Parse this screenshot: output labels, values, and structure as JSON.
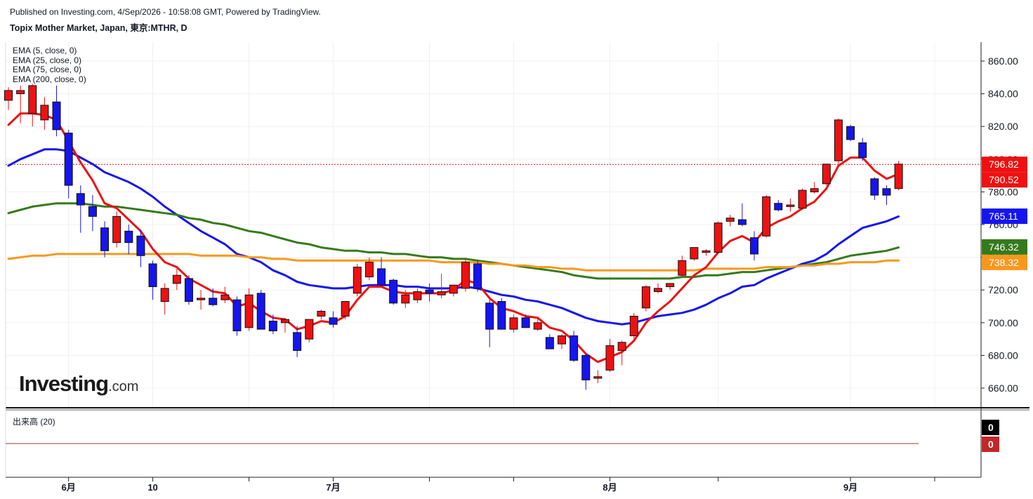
{
  "header": {
    "published": "Published on Investing.com, 4/Sep/2026 - 10:58:08 GMT, Powered by TradingView.",
    "symbol": "Topix Mother Market, Japan, 東京:MTHR, D"
  },
  "legend": {
    "items": [
      "EMA (5, close, 0)",
      "EMA (25, close, 0)",
      "EMA (75, close, 0)",
      "EMA (200, close, 0)"
    ]
  },
  "volume_panel": {
    "label": "出来高 (20)",
    "values": [
      "0",
      "0"
    ]
  },
  "logo": {
    "main": "Investing",
    "suffix": ".com"
  },
  "colors": {
    "up": "#ee1111",
    "down": "#1515ee",
    "ema5": "#ee1111",
    "ema25": "#1515ee",
    "ema75": "#357a1d",
    "ema200": "#f7981d",
    "volume_up_badge": "#000000",
    "volume_down_badge": "#c0282b"
  },
  "chart_data": {
    "type": "candlestick",
    "y_range": [
      645,
      870
    ],
    "y_ticks": [
      660,
      680,
      700,
      720,
      740,
      760,
      780,
      800,
      820,
      840,
      860
    ],
    "y_tick_labels": [
      "660.00",
      "680.00",
      "700.00",
      "720.00",
      "740.00",
      "760.00",
      "780.00",
      "800.00",
      "820.00",
      "840.00",
      "860.00"
    ],
    "x_labels": [
      {
        "index": 5,
        "label": "6月"
      },
      {
        "index": 12,
        "label": "10"
      },
      {
        "index": 27,
        "label": "7月"
      },
      {
        "index": 50,
        "label": "8月"
      },
      {
        "index": 70,
        "label": "9月"
      }
    ],
    "price_line": 796.82,
    "price_labels": [
      {
        "value": 796.82,
        "text": "796.82",
        "color": "#ee1111"
      },
      {
        "value": 790.52,
        "text": "790.52",
        "color": "#ee1111"
      },
      {
        "value": 765.11,
        "text": "765.11",
        "color": "#1515ee"
      },
      {
        "value": 746.32,
        "text": "746.32",
        "color": "#357a1d"
      },
      {
        "value": 738.32,
        "text": "738.32",
        "color": "#f7981d"
      }
    ],
    "candles": [
      {
        "o": 836,
        "h": 844,
        "l": 830,
        "c": 842
      },
      {
        "o": 840,
        "h": 845,
        "l": 822,
        "c": 842
      },
      {
        "o": 828,
        "h": 846,
        "l": 820,
        "c": 845
      },
      {
        "o": 824,
        "h": 838,
        "l": 818,
        "c": 833
      },
      {
        "o": 835,
        "h": 845,
        "l": 814,
        "c": 818
      },
      {
        "o": 816,
        "h": 818,
        "l": 776,
        "c": 784
      },
      {
        "o": 779,
        "h": 784,
        "l": 755,
        "c": 772
      },
      {
        "o": 771,
        "h": 778,
        "l": 756,
        "c": 765
      },
      {
        "o": 758,
        "h": 762,
        "l": 740,
        "c": 744
      },
      {
        "o": 749,
        "h": 768,
        "l": 746,
        "c": 765
      },
      {
        "o": 756,
        "h": 760,
        "l": 742,
        "c": 749
      },
      {
        "o": 753,
        "h": 757,
        "l": 734,
        "c": 741
      },
      {
        "o": 736,
        "h": 738,
        "l": 714,
        "c": 722
      },
      {
        "o": 713,
        "h": 724,
        "l": 705,
        "c": 721
      },
      {
        "o": 724,
        "h": 733,
        "l": 720,
        "c": 729
      },
      {
        "o": 727,
        "h": 729,
        "l": 711,
        "c": 713
      },
      {
        "o": 714,
        "h": 720,
        "l": 708,
        "c": 715
      },
      {
        "o": 715,
        "h": 721,
        "l": 710,
        "c": 711
      },
      {
        "o": 714,
        "h": 722,
        "l": 712,
        "c": 717
      },
      {
        "o": 714,
        "h": 716,
        "l": 692,
        "c": 695
      },
      {
        "o": 697,
        "h": 721,
        "l": 695,
        "c": 717
      },
      {
        "o": 718,
        "h": 720,
        "l": 696,
        "c": 696
      },
      {
        "o": 701,
        "h": 705,
        "l": 693,
        "c": 695
      },
      {
        "o": 700,
        "h": 703,
        "l": 694,
        "c": 702
      },
      {
        "o": 694,
        "h": 698,
        "l": 679,
        "c": 683
      },
      {
        "o": 690,
        "h": 702,
        "l": 688,
        "c": 702
      },
      {
        "o": 704,
        "h": 708,
        "l": 702,
        "c": 707
      },
      {
        "o": 703,
        "h": 707,
        "l": 697,
        "c": 699
      },
      {
        "o": 704,
        "h": 713,
        "l": 702,
        "c": 713
      },
      {
        "o": 718,
        "h": 736,
        "l": 716,
        "c": 734
      },
      {
        "o": 728,
        "h": 740,
        "l": 726,
        "c": 737
      },
      {
        "o": 733,
        "h": 740,
        "l": 724,
        "c": 723
      },
      {
        "o": 726,
        "h": 727,
        "l": 711,
        "c": 712
      },
      {
        "o": 712,
        "h": 720,
        "l": 709,
        "c": 717
      },
      {
        "o": 714,
        "h": 721,
        "l": 712,
        "c": 719
      },
      {
        "o": 720,
        "h": 724,
        "l": 713,
        "c": 718
      },
      {
        "o": 717,
        "h": 730,
        "l": 715,
        "c": 719
      },
      {
        "o": 718,
        "h": 723,
        "l": 716,
        "c": 723
      },
      {
        "o": 721,
        "h": 739,
        "l": 719,
        "c": 737
      },
      {
        "o": 736,
        "h": 738,
        "l": 719,
        "c": 721
      },
      {
        "o": 712,
        "h": 714,
        "l": 685,
        "c": 696
      },
      {
        "o": 713,
        "h": 715,
        "l": 696,
        "c": 696
      },
      {
        "o": 696,
        "h": 705,
        "l": 694,
        "c": 703
      },
      {
        "o": 703,
        "h": 705,
        "l": 697,
        "c": 697
      },
      {
        "o": 696,
        "h": 703,
        "l": 695,
        "c": 700
      },
      {
        "o": 691,
        "h": 693,
        "l": 684,
        "c": 684
      },
      {
        "o": 687,
        "h": 693,
        "l": 684,
        "c": 692
      },
      {
        "o": 692,
        "h": 695,
        "l": 676,
        "c": 677
      },
      {
        "o": 680,
        "h": 681,
        "l": 659,
        "c": 665
      },
      {
        "o": 666,
        "h": 671,
        "l": 663,
        "c": 667
      },
      {
        "o": 671,
        "h": 690,
        "l": 670,
        "c": 686
      },
      {
        "o": 683,
        "h": 689,
        "l": 674,
        "c": 688
      },
      {
        "o": 692,
        "h": 706,
        "l": 690,
        "c": 704
      },
      {
        "o": 709,
        "h": 723,
        "l": 707,
        "c": 722
      },
      {
        "o": 719,
        "h": 724,
        "l": 718,
        "c": 721
      },
      {
        "o": 722,
        "h": 724,
        "l": 720,
        "c": 724
      },
      {
        "o": 729,
        "h": 741,
        "l": 728,
        "c": 738
      },
      {
        "o": 739,
        "h": 746,
        "l": 738,
        "c": 746
      },
      {
        "o": 743,
        "h": 745,
        "l": 741,
        "c": 744
      },
      {
        "o": 743,
        "h": 762,
        "l": 742,
        "c": 761
      },
      {
        "o": 762,
        "h": 766,
        "l": 759,
        "c": 764
      },
      {
        "o": 763,
        "h": 773,
        "l": 759,
        "c": 760
      },
      {
        "o": 752,
        "h": 756,
        "l": 738,
        "c": 742
      },
      {
        "o": 753,
        "h": 778,
        "l": 752,
        "c": 777
      },
      {
        "o": 773,
        "h": 775,
        "l": 768,
        "c": 769
      },
      {
        "o": 771,
        "h": 776,
        "l": 768,
        "c": 772
      },
      {
        "o": 770,
        "h": 782,
        "l": 769,
        "c": 781
      },
      {
        "o": 780,
        "h": 786,
        "l": 779,
        "c": 782
      },
      {
        "o": 785,
        "h": 797,
        "l": 784,
        "c": 797
      },
      {
        "o": 799,
        "h": 825,
        "l": 797,
        "c": 824
      },
      {
        "o": 820,
        "h": 821,
        "l": 811,
        "c": 812
      },
      {
        "o": 810,
        "h": 813,
        "l": 799,
        "c": 801
      },
      {
        "o": 788,
        "h": 789,
        "l": 775,
        "c": 778
      },
      {
        "o": 782,
        "h": 784,
        "l": 772,
        "c": 778
      },
      {
        "o": 782,
        "h": 799,
        "l": 781,
        "c": 797
      }
    ],
    "ema": [
      {
        "name": "EMA 5",
        "color": "#ee1111",
        "width": 3,
        "values": [
          821,
          828,
          828,
          827,
          824,
          811,
          798,
          787,
          773,
          770,
          763,
          756,
          745,
          737,
          734,
          727,
          723,
          719,
          718,
          710,
          712,
          707,
          703,
          702,
          696,
          698,
          701,
          700,
          704,
          714,
          722,
          722,
          719,
          718,
          718,
          718,
          718,
          720,
          726,
          724,
          715,
          709,
          707,
          704,
          703,
          697,
          695,
          689,
          681,
          676,
          679,
          682,
          689,
          700,
          707,
          713,
          721,
          729,
          734,
          743,
          750,
          753,
          749,
          758,
          762,
          765,
          770,
          774,
          782,
          796,
          801,
          801,
          793,
          788,
          791
        ]
      },
      {
        "name": "EMA 25",
        "color": "#1515ee",
        "width": 3,
        "values": [
          796,
          800,
          803,
          806,
          806,
          805,
          801,
          797,
          792,
          789,
          786,
          782,
          777,
          771,
          766,
          761,
          756,
          752,
          748,
          742,
          740,
          737,
          732,
          729,
          725,
          723,
          722,
          721,
          721,
          722,
          723,
          723,
          723,
          722,
          722,
          721,
          721,
          721,
          722,
          721,
          719,
          717,
          716,
          714,
          713,
          711,
          709,
          706,
          703,
          701,
          700,
          699,
          700,
          702,
          704,
          705,
          706,
          708,
          711,
          715,
          718,
          722,
          723,
          727,
          730,
          733,
          736,
          738,
          742,
          748,
          753,
          758,
          760,
          762,
          765
        ]
      },
      {
        "name": "EMA 75",
        "color": "#357a1d",
        "width": 3,
        "values": [
          767,
          769,
          771,
          772,
          773,
          773,
          773,
          772,
          771,
          771,
          770,
          769,
          768,
          767,
          766,
          764,
          763,
          761,
          760,
          758,
          756,
          755,
          753,
          751,
          749,
          748,
          746,
          745,
          744,
          744,
          743,
          743,
          742,
          742,
          741,
          740,
          740,
          739,
          739,
          738,
          737,
          736,
          735,
          734,
          733,
          732,
          731,
          729,
          728,
          727,
          727,
          727,
          727,
          727,
          727,
          727,
          728,
          728,
          729,
          729,
          730,
          731,
          731,
          732,
          733,
          734,
          735,
          736,
          737,
          739,
          741,
          742,
          743,
          744,
          746
        ]
      },
      {
        "name": "EMA 200",
        "color": "#f7981d",
        "width": 3,
        "values": [
          739,
          740,
          741,
          741,
          742,
          742,
          742,
          742,
          742,
          742,
          742,
          742,
          742,
          742,
          742,
          742,
          741,
          741,
          741,
          741,
          740,
          740,
          739,
          739,
          738,
          738,
          738,
          738,
          738,
          738,
          738,
          738,
          738,
          738,
          738,
          738,
          737,
          737,
          737,
          737,
          736,
          736,
          735,
          735,
          734,
          734,
          733,
          733,
          732,
          732,
          732,
          732,
          732,
          732,
          732,
          732,
          732,
          732,
          733,
          733,
          733,
          733,
          733,
          734,
          734,
          734,
          735,
          735,
          736,
          736,
          737,
          737,
          737,
          738,
          738
        ]
      }
    ]
  }
}
